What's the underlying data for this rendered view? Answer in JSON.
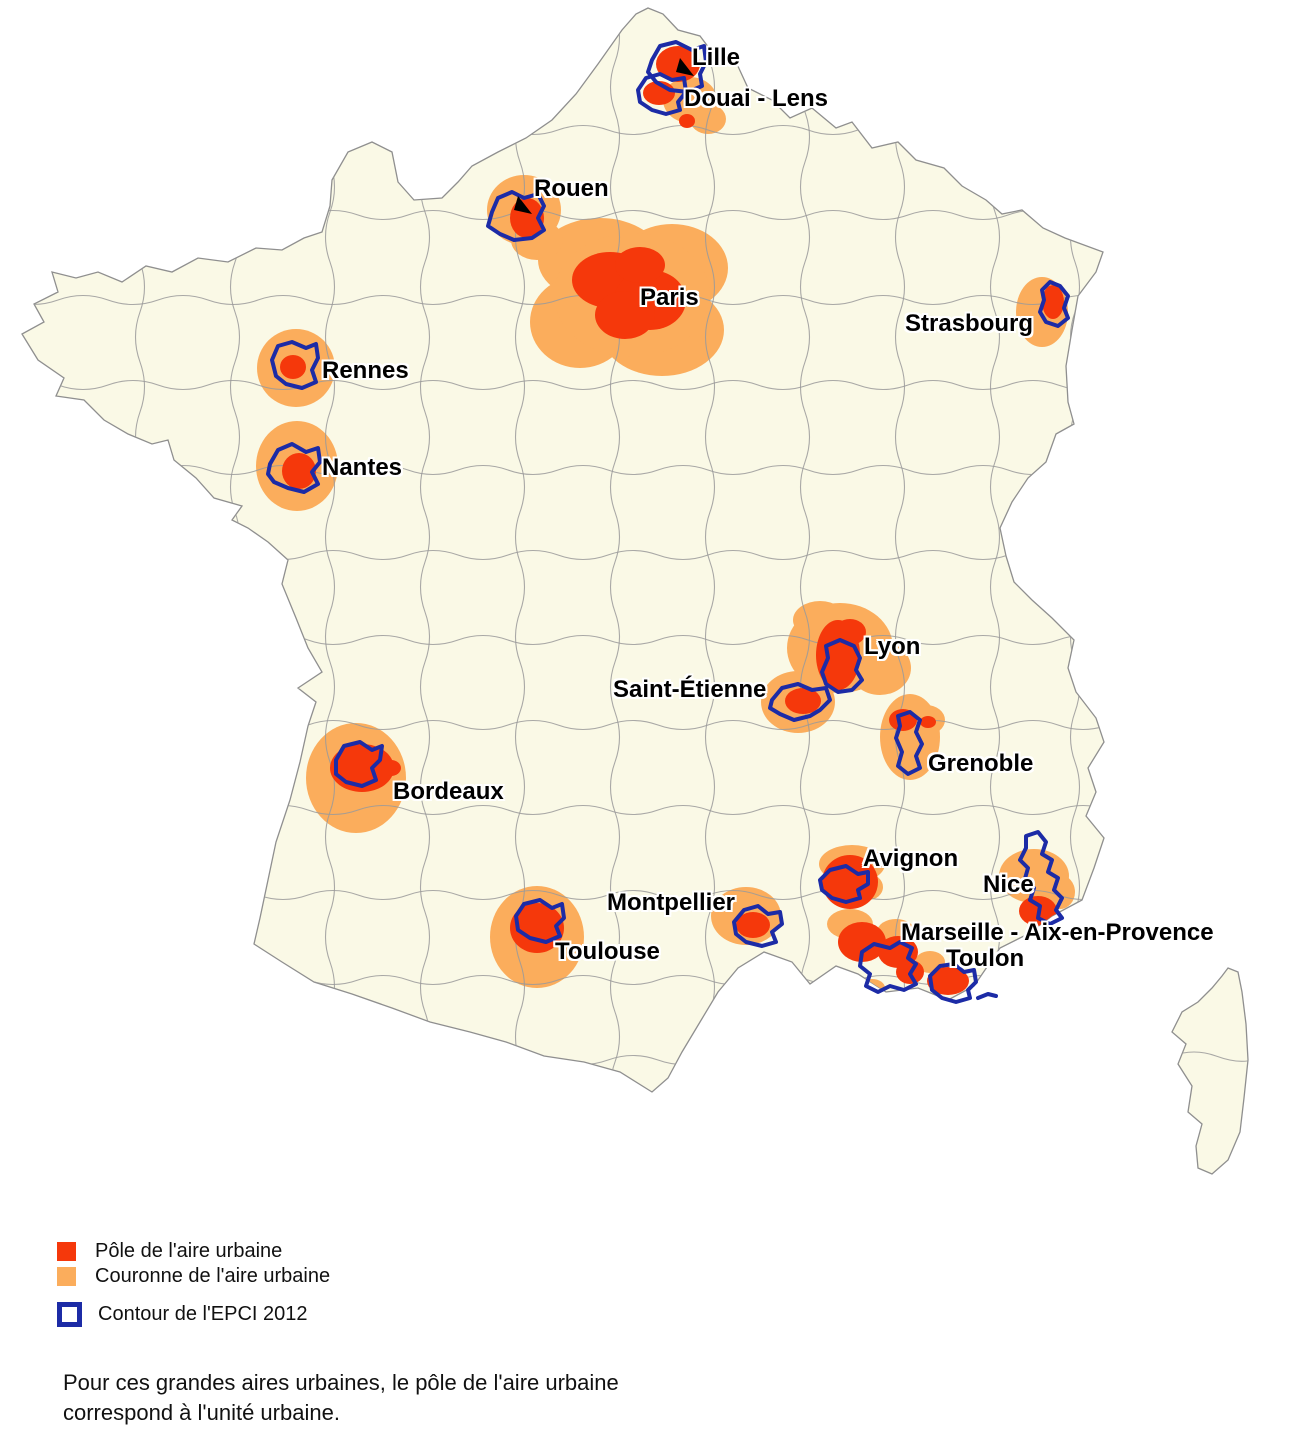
{
  "map": {
    "cities": [
      {
        "name": "Lille"
      },
      {
        "name": "Douai - Lens"
      },
      {
        "name": "Rouen"
      },
      {
        "name": "Paris"
      },
      {
        "name": "Strasbourg"
      },
      {
        "name": "Rennes"
      },
      {
        "name": "Nantes"
      },
      {
        "name": "Lyon"
      },
      {
        "name": "Saint-Étienne"
      },
      {
        "name": "Grenoble"
      },
      {
        "name": "Bordeaux"
      },
      {
        "name": "Avignon"
      },
      {
        "name": "Nice"
      },
      {
        "name": "Montpellier"
      },
      {
        "name": "Marseille - Aix-en-Provence"
      },
      {
        "name": "Toulouse"
      },
      {
        "name": "Toulon"
      }
    ]
  },
  "legend": {
    "items": [
      {
        "label": "Pôle de l'aire urbaine",
        "color": "#f5380b",
        "style": "fill"
      },
      {
        "label": "Couronne de l'aire urbaine",
        "color": "#fbad5c",
        "style": "fill"
      },
      {
        "label": "Contour de l'EPCI 2012",
        "color": "#1c2ba6",
        "style": "outline"
      }
    ]
  },
  "note": {
    "line1": "Pour ces grandes aires urbaines, le pôle de l'aire urbaine",
    "line2": "correspond à l'unité urbaine."
  },
  "colors": {
    "land": "#faf9e6",
    "departement_border": "#9a9a9a",
    "pole": "#f5380b",
    "couronne": "#fbad5c",
    "epci_contour": "#1c2ba6"
  }
}
